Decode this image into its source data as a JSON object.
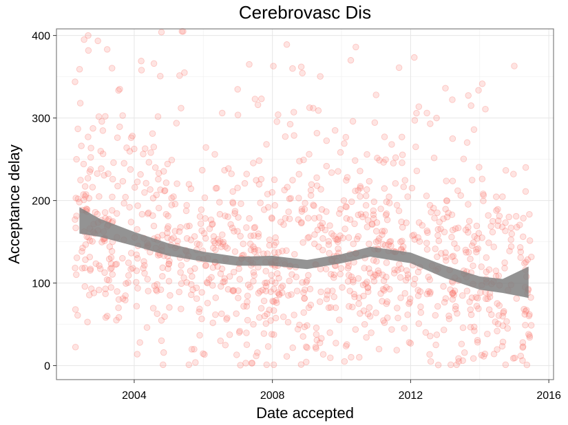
{
  "chart_data": {
    "type": "scatter",
    "title": "Cerebrovasc Dis",
    "xlabel": "Date accepted",
    "ylabel": "Acceptance delay",
    "xlim": [
      "2001-10-01",
      "2016-02-20"
    ],
    "ylim": [
      -17,
      408
    ],
    "x_ticks": [
      {
        "date": "2004-01-01",
        "label": "2004"
      },
      {
        "date": "2008-01-01",
        "label": "2008"
      },
      {
        "date": "2012-01-01",
        "label": "2012"
      },
      {
        "date": "2016-01-01",
        "label": "2016"
      }
    ],
    "y_ticks": [
      0,
      100,
      200,
      300,
      400
    ],
    "grid": true,
    "point_color": "#F8766D",
    "point_alpha": 0.2,
    "band_color": "#808080",
    "sample_points": [
      {
        "x": "2002-05-01",
        "y": 250
      },
      {
        "x": "2002-06-10",
        "y": 318
      },
      {
        "x": "2002-07-20",
        "y": 395
      },
      {
        "x": "2002-09-01",
        "y": 400
      },
      {
        "x": "2002-04-20",
        "y": 68
      },
      {
        "x": "2002-11-01",
        "y": 88
      },
      {
        "x": "2003-03-01",
        "y": 302
      },
      {
        "x": "2003-08-01",
        "y": 335
      },
      {
        "x": "2003-09-01",
        "y": 303
      },
      {
        "x": "2004-03-15",
        "y": 369
      },
      {
        "x": "2004-03-01",
        "y": 28
      },
      {
        "x": "2004-10-15",
        "y": 404
      },
      {
        "x": "2004-11-01",
        "y": 1
      },
      {
        "x": "2005-05-20",
        "y": 405
      },
      {
        "x": "2005-06-01",
        "y": 405
      },
      {
        "x": "2005-06-15",
        "y": 355
      },
      {
        "x": "2005-05-10",
        "y": 312
      },
      {
        "x": "2005-08-01",
        "y": 1
      },
      {
        "x": "2006-07-01",
        "y": 30
      },
      {
        "x": "2007-05-01",
        "y": 365
      },
      {
        "x": "2007-07-01",
        "y": 323
      },
      {
        "x": "2007-08-01",
        "y": 316
      },
      {
        "x": "2007-06-01",
        "y": 3
      },
      {
        "x": "2007-11-01",
        "y": 1
      },
      {
        "x": "2008-01-15",
        "y": 1
      },
      {
        "x": "2008-03-01",
        "y": 304
      },
      {
        "x": "2008-06-01",
        "y": 389
      },
      {
        "x": "2008-08-01",
        "y": 360
      },
      {
        "x": "2008-11-01",
        "y": 362
      },
      {
        "x": "2009-05-01",
        "y": 309
      },
      {
        "x": "2010-06-01",
        "y": 386
      },
      {
        "x": "2010-05-01",
        "y": 296
      },
      {
        "x": "2010-02-01",
        "y": 5
      },
      {
        "x": "2011-01-01",
        "y": 328
      },
      {
        "x": "2011-02-01",
        "y": 20
      },
      {
        "x": "2011-05-01",
        "y": 58
      },
      {
        "x": "2011-06-15",
        "y": 268
      },
      {
        "x": "2011-10-01",
        "y": 277
      },
      {
        "x": "2011-09-01",
        "y": 361
      },
      {
        "x": "2012-01-01",
        "y": 27
      },
      {
        "x": "2012-08-01",
        "y": 5
      },
      {
        "x": "2012-10-01",
        "y": 300
      },
      {
        "x": "2013-03-01",
        "y": 1
      },
      {
        "x": "2013-05-01",
        "y": 1
      },
      {
        "x": "2013-03-20",
        "y": 275
      },
      {
        "x": "2013-10-01",
        "y": 315
      },
      {
        "x": "2013-11-01",
        "y": 286
      },
      {
        "x": "2014-06-01",
        "y": 14
      },
      {
        "x": "2014-10-01",
        "y": 1
      },
      {
        "x": "2015-01-01",
        "y": 363
      },
      {
        "x": "2015-05-01",
        "y": 211
      },
      {
        "x": "2015-06-01",
        "y": 38
      },
      {
        "x": "2015-06-10",
        "y": 62
      },
      {
        "x": "2015-04-01",
        "y": 28
      }
    ],
    "smooth_band": [
      {
        "x": "2002-06-01",
        "lower": 160,
        "upper": 192
      },
      {
        "x": "2003-01-01",
        "lower": 156,
        "upper": 178
      },
      {
        "x": "2004-01-01",
        "lower": 145,
        "upper": 162
      },
      {
        "x": "2005-01-01",
        "lower": 133,
        "upper": 148
      },
      {
        "x": "2006-01-01",
        "lower": 126,
        "upper": 138
      },
      {
        "x": "2007-01-01",
        "lower": 121,
        "upper": 132
      },
      {
        "x": "2008-01-01",
        "lower": 121,
        "upper": 133
      },
      {
        "x": "2009-01-01",
        "lower": 117,
        "upper": 128
      },
      {
        "x": "2010-01-01",
        "lower": 124,
        "upper": 135
      },
      {
        "x": "2010-11-01",
        "lower": 132,
        "upper": 144
      },
      {
        "x": "2012-01-01",
        "lower": 124,
        "upper": 137
      },
      {
        "x": "2013-01-01",
        "lower": 106,
        "upper": 121
      },
      {
        "x": "2014-01-01",
        "lower": 92,
        "upper": 108
      },
      {
        "x": "2014-09-01",
        "lower": 88,
        "upper": 105
      },
      {
        "x": "2015-06-01",
        "lower": 82,
        "upper": 120
      }
    ]
  }
}
